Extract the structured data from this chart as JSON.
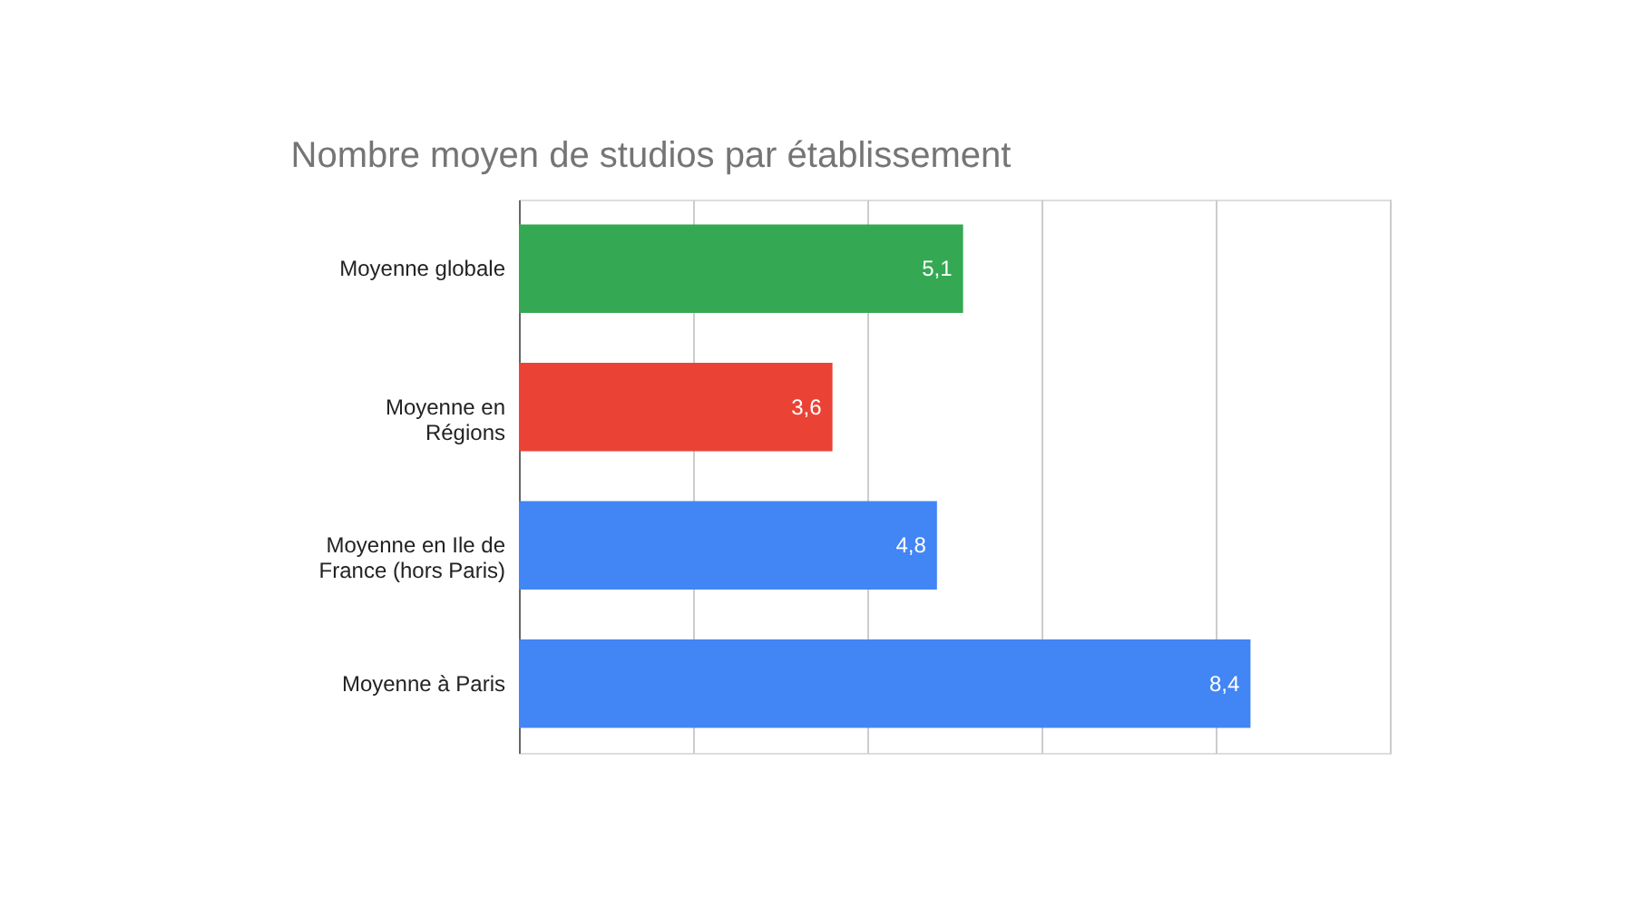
{
  "chart_data": {
    "type": "bar",
    "orientation": "horizontal",
    "title": "Nombre moyen de studios par établissement",
    "categories": [
      "Moyenne globale",
      "Moyenne en Régions",
      "Moyenne en Ile de France (hors Paris)",
      "Moyenne à Paris"
    ],
    "values": [
      5.1,
      3.6,
      4.8,
      8.4
    ],
    "colors": [
      "#34a853",
      "#ea4335",
      "#4285f4",
      "#4285f4"
    ],
    "value_labels": [
      "5,1",
      "3,6",
      "4,8",
      "8,4"
    ],
    "xlim": [
      0,
      10
    ],
    "xticks": [
      {
        "value": 0,
        "label": null
      },
      {
        "value": 2,
        "label": null
      },
      {
        "value": 4,
        "label": null
      },
      {
        "value": 6,
        "label": null
      },
      {
        "value": 8,
        "label": null
      },
      {
        "value": 10,
        "label": null
      }
    ],
    "grid": "x",
    "tick_labels": "y"
  }
}
